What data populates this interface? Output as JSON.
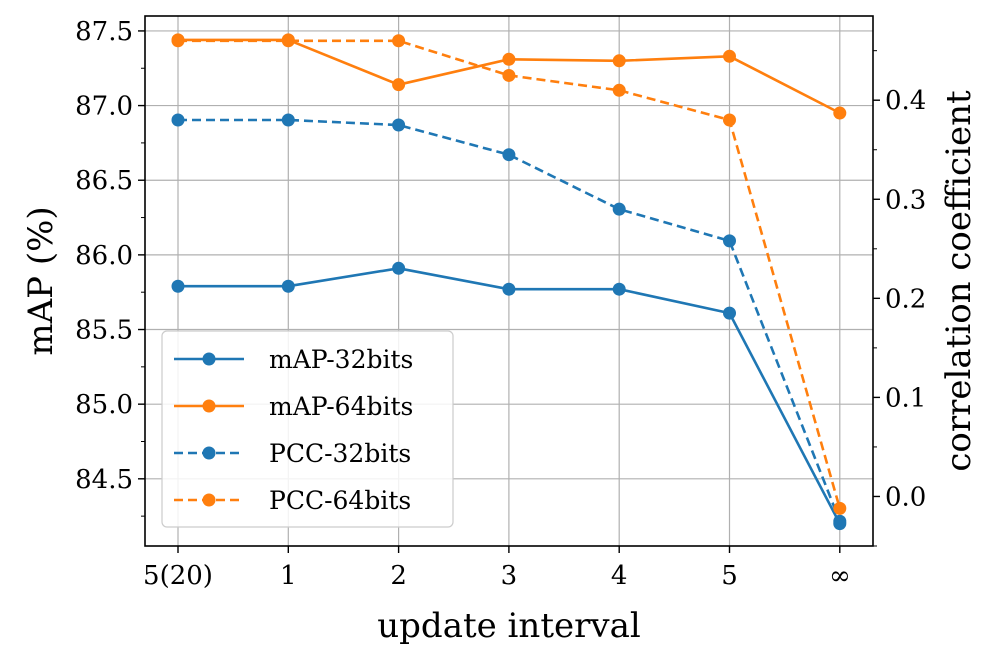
{
  "chart_data": {
    "type": "line",
    "categories": [
      "5(20)",
      "1",
      "2",
      "3",
      "4",
      "5",
      "∞"
    ],
    "xlabel": "update interval",
    "ylabel_left": "mAP (%)",
    "ylabel_right": "correlation coefficient",
    "left_axis": {
      "range": [
        84.05,
        87.6
      ],
      "ticks": [
        84.5,
        85.0,
        85.5,
        86.0,
        86.5,
        87.0,
        87.5
      ],
      "tick_labels": [
        "84.5",
        "85.0",
        "85.5",
        "86.0",
        "86.5",
        "87.0",
        "87.5"
      ]
    },
    "right_axis": {
      "range": [
        -0.05,
        0.485
      ],
      "ticks": [
        0.0,
        0.1,
        0.2,
        0.3,
        0.4
      ],
      "tick_labels": [
        "0.0",
        "0.1",
        "0.2",
        "0.3",
        "0.4"
      ]
    },
    "grid": true,
    "legend_position": "lower-left",
    "series": [
      {
        "name": "mAP-32bits",
        "axis": "left",
        "color": "#1f77b4",
        "style": "solid",
        "values": [
          85.79,
          85.79,
          85.91,
          85.77,
          85.77,
          85.61,
          84.2
        ]
      },
      {
        "name": "mAP-64bits",
        "axis": "left",
        "color": "#ff7f0e",
        "style": "solid",
        "values": [
          87.44,
          87.44,
          87.14,
          87.31,
          87.3,
          87.33,
          86.95
        ]
      },
      {
        "name": "PCC-32bits",
        "axis": "right",
        "color": "#1f77b4",
        "style": "dashed",
        "values": [
          0.38,
          0.38,
          0.375,
          0.345,
          0.29,
          0.258,
          -0.025
        ]
      },
      {
        "name": "PCC-64bits",
        "axis": "right",
        "color": "#ff7f0e",
        "style": "dashed",
        "values": [
          0.46,
          0.46,
          0.46,
          0.425,
          0.41,
          0.38,
          -0.012
        ]
      }
    ]
  }
}
